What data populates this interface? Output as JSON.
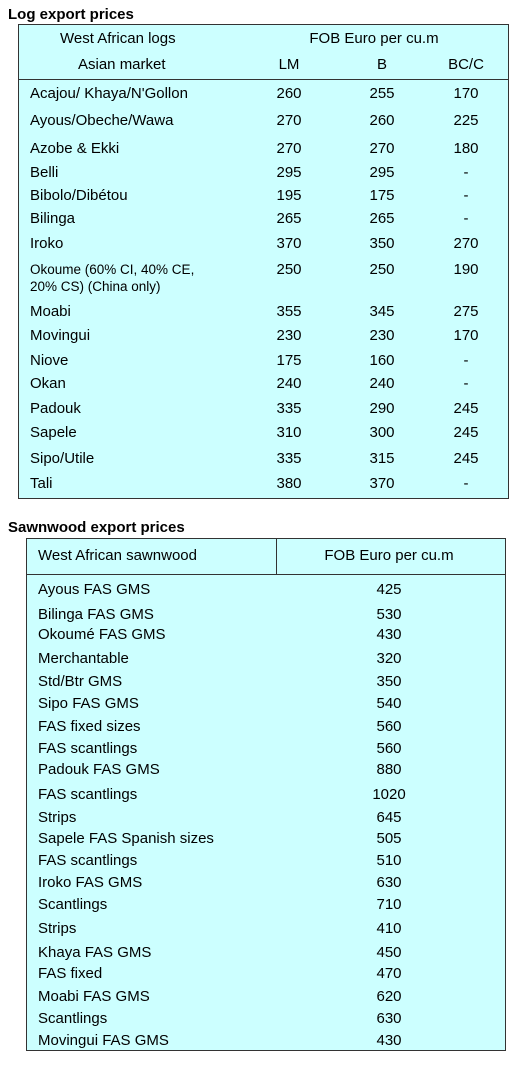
{
  "log_prices": {
    "title": "Log export prices",
    "header": [
      "West African logs",
      "FOB Euro per cu.m"
    ],
    "subheader": [
      "Asian market",
      "LM",
      "B",
      "BC/C"
    ],
    "rows": [
      [
        "Acajou/ Khaya/N'Gollon",
        260,
        255,
        170
      ],
      [
        "Ayous/Obeche/Wawa",
        270,
        260,
        225
      ],
      [
        "Azobe & Ekki",
        270,
        270,
        180
      ],
      [
        "Belli",
        295,
        295,
        "-"
      ],
      [
        "Bibolo/Dibétou",
        195,
        175,
        "-"
      ],
      [
        "Bilinga",
        265,
        265,
        "-"
      ],
      [
        "Iroko",
        370,
        350,
        270
      ],
      [
        "Okoume (60% CI, 40% CE, 20% CS) (China only)",
        250,
        250,
        190
      ],
      [
        "Moabi",
        355,
        345,
        275
      ],
      [
        "Movingui",
        230,
        230,
        170
      ],
      [
        "Niove",
        175,
        160,
        "-"
      ],
      [
        "Okan",
        240,
        240,
        "-"
      ],
      [
        "Padouk",
        335,
        290,
        245
      ],
      [
        "Sapele",
        310,
        300,
        245
      ],
      [
        "Sipo/Utile",
        335,
        315,
        245
      ],
      [
        "Tali",
        380,
        370,
        "-"
      ]
    ]
  },
  "sawnwood_prices": {
    "title": "Sawnwood export prices",
    "header": [
      "West African sawnwood",
      "FOB Euro per cu.m"
    ],
    "rows": [
      [
        "Ayous FAS GMS",
        425
      ],
      [
        "Bilinga FAS GMS",
        530
      ],
      [
        "Okoumé FAS GMS",
        430
      ],
      [
        "Merchantable",
        320
      ],
      [
        "Std/Btr GMS",
        350
      ],
      [
        "Sipo FAS GMS",
        540
      ],
      [
        "FAS fixed sizes",
        560
      ],
      [
        "FAS scantlings",
        560
      ],
      [
        "Padouk FAS GMS",
        880
      ],
      [
        "FAS scantlings",
        1020
      ],
      [
        "Strips",
        645
      ],
      [
        "Sapele FAS Spanish sizes",
        505
      ],
      [
        "FAS scantlings",
        510
      ],
      [
        "Iroko FAS GMS",
        630
      ],
      [
        "Scantlings",
        710
      ],
      [
        "Strips",
        410
      ],
      [
        "Khaya FAS GMS",
        450
      ],
      [
        "FAS fixed",
        470
      ],
      [
        "Moabi FAS GMS",
        620
      ],
      [
        "Scantlings",
        630
      ],
      [
        "Movingui FAS GMS",
        430
      ]
    ]
  }
}
